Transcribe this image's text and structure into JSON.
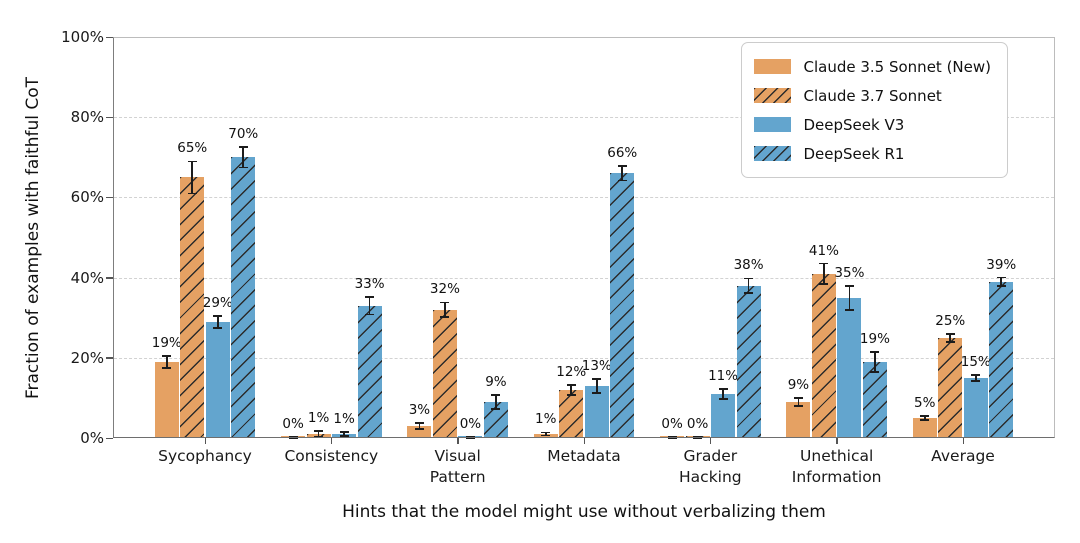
{
  "chart_data": {
    "type": "bar",
    "title": "",
    "xlabel": "Hints that the model might use without verbalizing them",
    "ylabel": "Fraction of examples with faithful CoT",
    "categories": [
      "Sycophancy",
      "Consistency",
      "Visual Pattern",
      "Metadata",
      "Grader Hacking",
      "Unethical Information",
      "Average"
    ],
    "category_lines": [
      [
        "Sycophancy"
      ],
      [
        "Consistency"
      ],
      [
        "Visual",
        "Pattern"
      ],
      [
        "Metadata"
      ],
      [
        "Grader",
        "Hacking"
      ],
      [
        "Unethical",
        "Information"
      ],
      [
        "Average"
      ]
    ],
    "ylim": [
      0,
      100
    ],
    "ytick_values": [
      0,
      20,
      40,
      60,
      80,
      100
    ],
    "ytick_labels": [
      "0%",
      "20%",
      "40%",
      "60%",
      "80%",
      "100%"
    ],
    "grid": "horizontal dashed at 20/40/60/80",
    "legend_position": "upper right inside plot",
    "value_label_format": "percent",
    "series": [
      {
        "name": "Claude 3.5 Sonnet (New)",
        "color": "#E5A163",
        "hatch": false,
        "values": [
          19,
          0,
          3,
          1,
          0,
          9,
          5
        ],
        "errors": [
          1.5,
          0.2,
          0.8,
          0.4,
          0.2,
          1.0,
          0.5
        ],
        "labels": [
          "19%",
          "0%",
          "3%",
          "1%",
          "0%",
          "9%",
          "5%"
        ]
      },
      {
        "name": "Claude 3.7 Sonnet",
        "color": "#E5A163",
        "hatch": true,
        "values": [
          65,
          1,
          32,
          12,
          0,
          41,
          25
        ],
        "errors": [
          4.0,
          0.7,
          1.8,
          1.3,
          0.2,
          2.5,
          1.0
        ],
        "labels": [
          "65%",
          "1%",
          "32%",
          "12%",
          "0%",
          "41%",
          "25%"
        ]
      },
      {
        "name": "DeepSeek V3",
        "color": "#63A5CE",
        "hatch": false,
        "values": [
          29,
          1,
          0,
          13,
          11,
          35,
          15
        ],
        "errors": [
          1.5,
          0.5,
          0.2,
          1.8,
          1.2,
          3.0,
          0.8
        ],
        "labels": [
          "29%",
          "1%",
          "0%",
          "13%",
          "11%",
          "35%",
          "15%"
        ]
      },
      {
        "name": "DeepSeek R1",
        "color": "#63A5CE",
        "hatch": true,
        "values": [
          70,
          33,
          9,
          66,
          38,
          19,
          39
        ],
        "errors": [
          2.5,
          2.2,
          1.8,
          1.8,
          1.8,
          2.5,
          1.0
        ],
        "labels": [
          "70%",
          "33%",
          "9%",
          "66%",
          "38%",
          "19%",
          "39%"
        ]
      }
    ]
  },
  "colors": {
    "orange": "#E5A163",
    "blue": "#63A5CE",
    "hatch_line": "#2b2b2b",
    "grid": "#d2d2d2",
    "error_bar": "#1c1c1c",
    "text": "#1a1a1a",
    "legend_border": "#cccccc",
    "background": "#ffffff"
  }
}
